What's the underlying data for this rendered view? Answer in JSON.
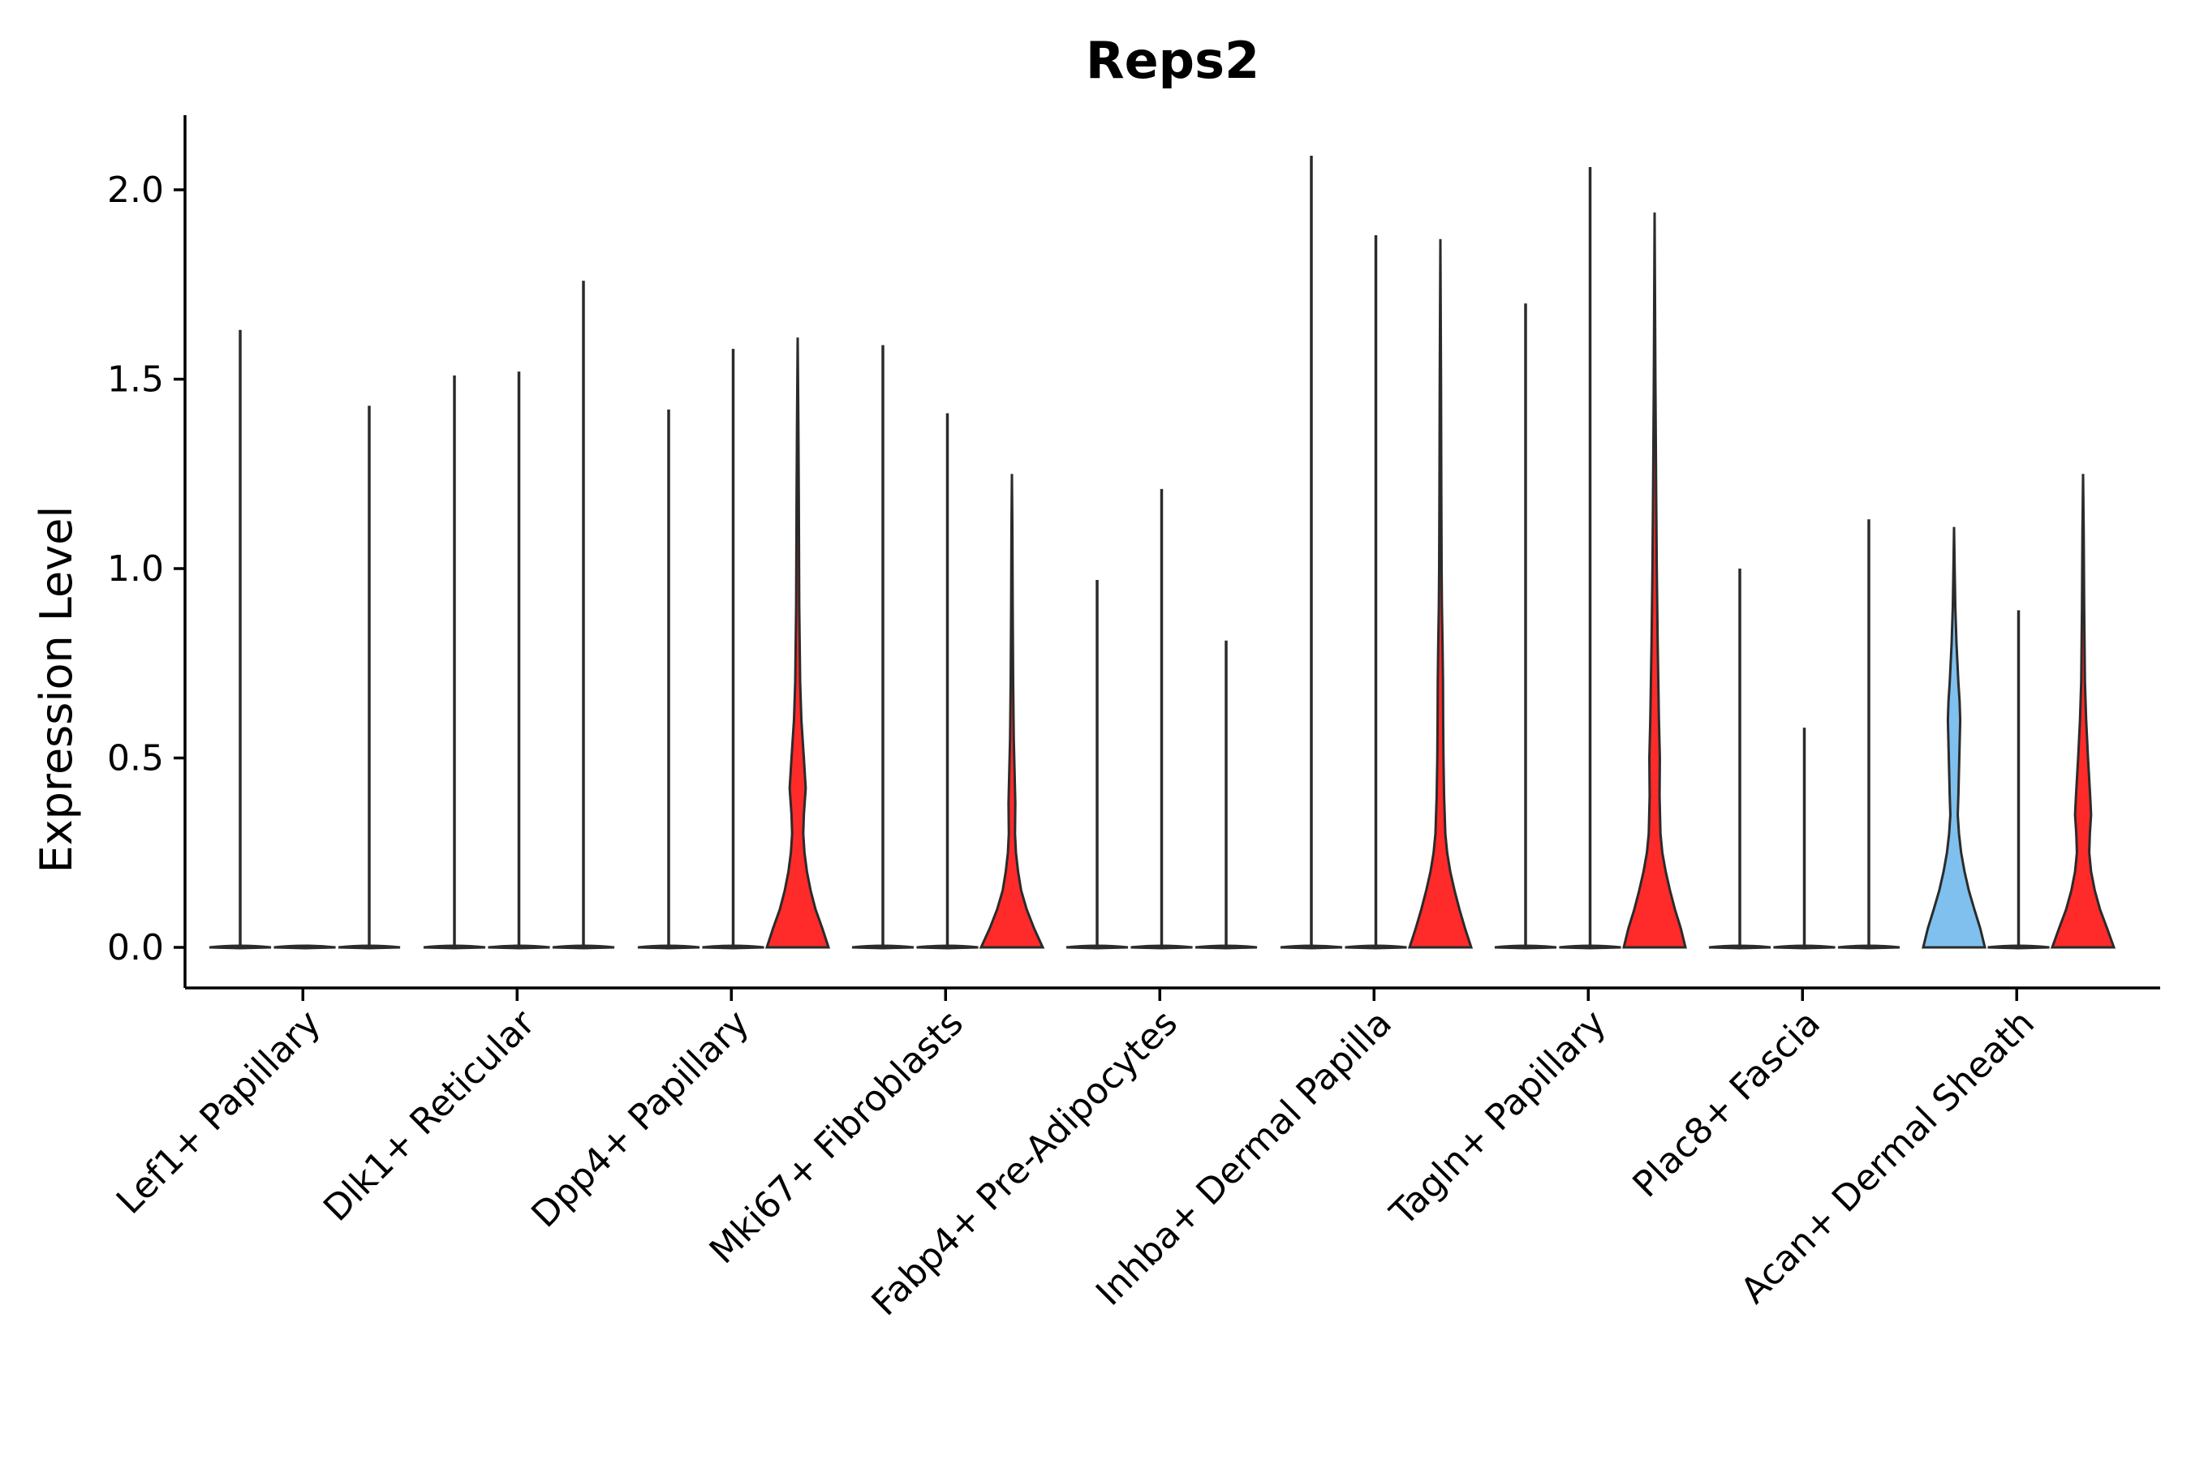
{
  "chart_data": {
    "type": "violin",
    "title": "Reps2",
    "xlabel": "",
    "ylabel": "Expression Level",
    "ylim": [
      -0.11,
      2.2
    ],
    "yticks": [
      0.0,
      0.5,
      1.0,
      1.5,
      2.0
    ],
    "ytick_labels": [
      "0.0",
      "0.5",
      "1.0",
      "1.5",
      "2.0"
    ],
    "categories": [
      "Lef1+ Papillary",
      "Dlk1+ Reticular",
      "Dpp4+ Papillary",
      "Mki67+ Fibroblasts",
      "Fabp4+ Pre-Adipocytes",
      "Inhba+ Dermal Papilla",
      "Tagln+ Papillary",
      "Plac8+ Fascia",
      "Acan+ Dermal Sheath"
    ],
    "colors": {
      "red": "#ff2a2a",
      "blue": "#7fc0ee",
      "outline": "#2b2b2b"
    },
    "groups": [
      {
        "category": "Lef1+ Papillary",
        "violins": [
          {
            "max": 1.63,
            "shape": "flat"
          },
          {
            "max": 0.0,
            "shape": "flat"
          },
          {
            "max": 1.43,
            "shape": "flat"
          }
        ]
      },
      {
        "category": "Dlk1+ Reticular",
        "violins": [
          {
            "max": 1.51,
            "shape": "flat"
          },
          {
            "max": 1.52,
            "shape": "flat"
          },
          {
            "max": 1.76,
            "shape": "flat"
          }
        ]
      },
      {
        "category": "Dpp4+ Papillary",
        "violins": [
          {
            "max": 1.42,
            "shape": "flat"
          },
          {
            "max": 1.58,
            "shape": "flat"
          },
          {
            "max": 1.61,
            "shape": "filled",
            "color": "red",
            "profile": [
              [
                0.0,
                1.0
              ],
              [
                0.05,
                0.8
              ],
              [
                0.1,
                0.58
              ],
              [
                0.15,
                0.42
              ],
              [
                0.2,
                0.3
              ],
              [
                0.25,
                0.22
              ],
              [
                0.3,
                0.18
              ],
              [
                0.35,
                0.2
              ],
              [
                0.42,
                0.26
              ],
              [
                0.5,
                0.2
              ],
              [
                0.6,
                0.12
              ],
              [
                0.7,
                0.08
              ],
              [
                0.9,
                0.05
              ],
              [
                1.2,
                0.035
              ],
              [
                1.4,
                0.02
              ],
              [
                1.61,
                0.0
              ]
            ]
          }
        ]
      },
      {
        "category": "Mki67+ Fibroblasts",
        "violins": [
          {
            "max": 1.59,
            "shape": "flat"
          },
          {
            "max": 1.41,
            "shape": "flat"
          },
          {
            "max": 1.25,
            "shape": "filled",
            "color": "red",
            "profile": [
              [
                0.0,
                1.0
              ],
              [
                0.05,
                0.72
              ],
              [
                0.1,
                0.48
              ],
              [
                0.15,
                0.3
              ],
              [
                0.2,
                0.2
              ],
              [
                0.25,
                0.13
              ],
              [
                0.3,
                0.1
              ],
              [
                0.38,
                0.11
              ],
              [
                0.45,
                0.09
              ],
              [
                0.55,
                0.06
              ],
              [
                0.7,
                0.04
              ],
              [
                0.9,
                0.025
              ],
              [
                1.1,
                0.015
              ],
              [
                1.25,
                0.0
              ]
            ]
          }
        ]
      },
      {
        "category": "Fabp4+ Pre-Adipocytes",
        "violins": [
          {
            "max": 0.97,
            "shape": "flat"
          },
          {
            "max": 1.21,
            "shape": "flat"
          },
          {
            "max": 0.81,
            "shape": "flat"
          }
        ]
      },
      {
        "category": "Inhba+ Dermal Papilla",
        "violins": [
          {
            "max": 2.09,
            "shape": "flat"
          },
          {
            "max": 1.88,
            "shape": "flat"
          },
          {
            "max": 1.87,
            "shape": "filled",
            "color": "red",
            "profile": [
              [
                0.0,
                1.0
              ],
              [
                0.05,
                0.8
              ],
              [
                0.1,
                0.62
              ],
              [
                0.15,
                0.46
              ],
              [
                0.2,
                0.32
              ],
              [
                0.25,
                0.22
              ],
              [
                0.3,
                0.16
              ],
              [
                0.4,
                0.12
              ],
              [
                0.5,
                0.1
              ],
              [
                0.6,
                0.09
              ],
              [
                0.7,
                0.085
              ],
              [
                0.8,
                0.07
              ],
              [
                0.9,
                0.05
              ],
              [
                1.0,
                0.04
              ],
              [
                1.2,
                0.03
              ],
              [
                1.5,
                0.02
              ],
              [
                1.87,
                0.0
              ]
            ]
          }
        ]
      },
      {
        "category": "Tagln+ Papillary",
        "violins": [
          {
            "max": 1.7,
            "shape": "flat"
          },
          {
            "max": 2.06,
            "shape": "flat"
          },
          {
            "max": 1.94,
            "shape": "filled",
            "color": "red",
            "profile": [
              [
                0.0,
                1.0
              ],
              [
                0.05,
                0.85
              ],
              [
                0.1,
                0.66
              ],
              [
                0.15,
                0.5
              ],
              [
                0.2,
                0.36
              ],
              [
                0.25,
                0.25
              ],
              [
                0.3,
                0.19
              ],
              [
                0.4,
                0.16
              ],
              [
                0.5,
                0.17
              ],
              [
                0.6,
                0.14
              ],
              [
                0.7,
                0.12
              ],
              [
                0.8,
                0.1
              ],
              [
                0.9,
                0.085
              ],
              [
                1.0,
                0.07
              ],
              [
                1.2,
                0.05
              ],
              [
                1.5,
                0.025
              ],
              [
                1.94,
                0.0
              ]
            ]
          }
        ]
      },
      {
        "category": "Plac8+ Fascia",
        "violins": [
          {
            "max": 1.0,
            "shape": "flat"
          },
          {
            "max": 0.58,
            "shape": "flat"
          },
          {
            "max": 1.13,
            "shape": "flat"
          }
        ]
      },
      {
        "category": "Acan+ Dermal Sheath",
        "violins": [
          {
            "max": 1.11,
            "shape": "filled",
            "color": "blue",
            "profile": [
              [
                0.0,
                1.0
              ],
              [
                0.05,
                0.85
              ],
              [
                0.1,
                0.66
              ],
              [
                0.15,
                0.48
              ],
              [
                0.2,
                0.34
              ],
              [
                0.25,
                0.23
              ],
              [
                0.3,
                0.16
              ],
              [
                0.35,
                0.12
              ],
              [
                0.4,
                0.14
              ],
              [
                0.5,
                0.17
              ],
              [
                0.6,
                0.2
              ],
              [
                0.65,
                0.18
              ],
              [
                0.7,
                0.14
              ],
              [
                0.8,
                0.08
              ],
              [
                0.9,
                0.04
              ],
              [
                1.0,
                0.02
              ],
              [
                1.11,
                0.0
              ]
            ]
          },
          {
            "max": 0.89,
            "shape": "flat"
          },
          {
            "max": 1.25,
            "shape": "filled",
            "color": "red",
            "profile": [
              [
                0.0,
                1.0
              ],
              [
                0.05,
                0.78
              ],
              [
                0.1,
                0.55
              ],
              [
                0.15,
                0.38
              ],
              [
                0.2,
                0.26
              ],
              [
                0.25,
                0.2
              ],
              [
                0.3,
                0.22
              ],
              [
                0.35,
                0.26
              ],
              [
                0.4,
                0.23
              ],
              [
                0.5,
                0.16
              ],
              [
                0.6,
                0.1
              ],
              [
                0.7,
                0.06
              ],
              [
                0.9,
                0.035
              ],
              [
                1.1,
                0.02
              ],
              [
                1.25,
                0.0
              ]
            ]
          }
        ]
      }
    ]
  }
}
